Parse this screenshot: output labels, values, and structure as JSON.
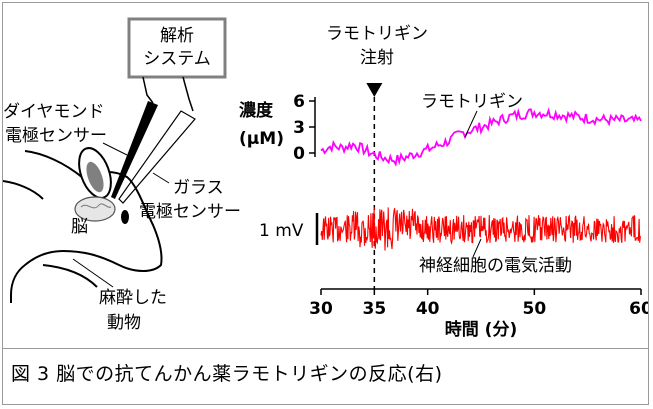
{
  "colors": {
    "concentration_trace": "#ff00ff",
    "neural_trace": "#ff0000",
    "analysis_box": "#808080",
    "text": "#000000"
  },
  "labels": {
    "analysis_system_line1": "解析",
    "analysis_system_line2": "システム",
    "diamond_sensor_line1": "ダイヤモンド",
    "diamond_sensor_line2": "電極センサー",
    "glass_sensor_line1": "ガラス",
    "glass_sensor_line2": "電極センサー",
    "brain": "脳",
    "anesthetized_line1": "麻酔した",
    "anesthetized_line2": "動物",
    "injection_line1": "ラモトリギン",
    "injection_line2": "注射",
    "drug_trace": "ラモトリギン",
    "concentration_line1": "濃度",
    "concentration_line2": "(μM)",
    "scale_bar": "1 mV",
    "neural_activity": "神経細胞の電気活動"
  },
  "chart_data": {
    "type": "line",
    "xlabel": "時間 (分)",
    "x_ticks": [
      30,
      35,
      40,
      50,
      60
    ],
    "xlim": [
      30,
      60
    ],
    "injection_time": 35,
    "concentration": {
      "yticks": [
        0,
        3,
        6
      ],
      "ylim": [
        0,
        6
      ],
      "x": [
        30,
        31,
        32,
        33,
        34,
        35,
        36,
        37,
        38,
        39,
        40,
        41,
        42,
        43,
        44,
        45,
        46,
        47,
        48,
        49,
        50,
        51,
        52,
        53,
        54,
        55,
        56,
        57,
        58,
        59,
        60
      ],
      "y": [
        0.3,
        0.8,
        0.6,
        1.0,
        0.4,
        -0.2,
        -0.6,
        -0.8,
        -0.5,
        0.0,
        0.4,
        0.9,
        1.4,
        2.2,
        2.6,
        3.0,
        3.4,
        3.9,
        4.3,
        4.5,
        4.7,
        4.6,
        4.5,
        4.3,
        4.2,
        4.0,
        3.9,
        3.8,
        3.8,
        3.7,
        3.7
      ]
    },
    "neural_activity": {
      "scale_mV": 1
    }
  },
  "caption": "図 3 脳での抗てんかん薬ラモトリギンの反応(右)"
}
